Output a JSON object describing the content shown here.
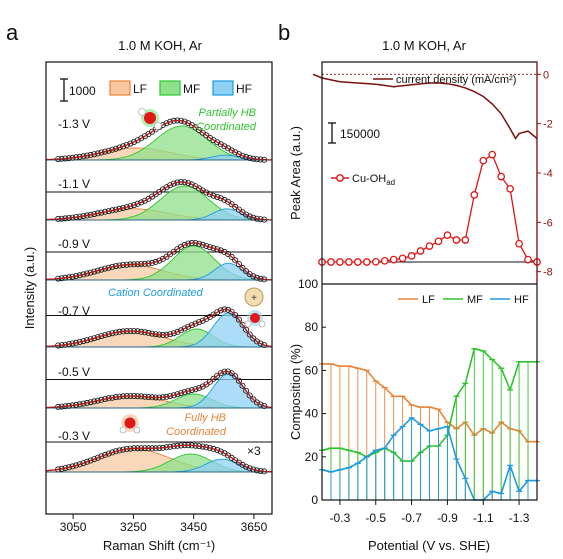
{
  "panel_letters": {
    "a": "a",
    "b": "b"
  },
  "colors": {
    "lf_fill": "#f7c9a3",
    "lf_line": "#e8843a",
    "mf_fill": "#8fe08a",
    "mf_line": "#2ec42e",
    "hf_fill": "#8fd0f5",
    "hf_line": "#1d9be0",
    "current": "#7a1010",
    "cuoh": "#e11414",
    "fit": "#b11a1a"
  },
  "chart_data": [
    {
      "type": "area",
      "panel": "a",
      "title": "1.0 M KOH, Ar",
      "xlabel": "Raman Shift (cm⁻¹)",
      "ylabel": "Intensity (a.u.)",
      "xlim": [
        2960,
        3710
      ],
      "xticks": [
        "3050",
        "3250",
        "3450",
        "3650"
      ],
      "xtick_values": [
        3050,
        3250,
        3450,
        3650
      ],
      "scale_bar_label": "1000",
      "legend": [
        "LF",
        "MF",
        "HF"
      ],
      "annotations": {
        "partial": [
          "Partially HB",
          "Coordinated"
        ],
        "cation": "Cation Coordinated",
        "fully": [
          "Fully HB",
          "Coordinated"
        ],
        "times3": "×3"
      },
      "series": [
        {
          "name": "-1.3 V",
          "lf": {
            "c": 3260,
            "h": 0.3,
            "w": 115
          },
          "mf": {
            "c": 3410,
            "h": 0.85,
            "w": 85
          },
          "hf": {
            "c": 3555,
            "h": 0.12,
            "w": 45
          }
        },
        {
          "name": "-1.1 V",
          "lf": {
            "c": 3250,
            "h": 0.28,
            "w": 115
          },
          "mf": {
            "c": 3420,
            "h": 0.85,
            "w": 80
          },
          "hf": {
            "c": 3560,
            "h": 0.28,
            "w": 45
          }
        },
        {
          "name": "-0.9 V",
          "lf": {
            "c": 3240,
            "h": 0.38,
            "w": 110
          },
          "mf": {
            "c": 3450,
            "h": 0.85,
            "w": 70
          },
          "hf": {
            "c": 3565,
            "h": 0.42,
            "w": 45
          }
        },
        {
          "name": "-0.7 V",
          "lf": {
            "c": 3240,
            "h": 0.4,
            "w": 110
          },
          "mf": {
            "c": 3460,
            "h": 0.45,
            "w": 55
          },
          "hf": {
            "c": 3565,
            "h": 0.85,
            "w": 50
          }
        },
        {
          "name": "-0.5 V",
          "lf": {
            "c": 3240,
            "h": 0.3,
            "w": 110
          },
          "mf": {
            "c": 3450,
            "h": 0.35,
            "w": 60
          },
          "hf": {
            "c": 3565,
            "h": 0.85,
            "w": 50
          }
        },
        {
          "name": "-0.3 V",
          "lf": {
            "c": 3250,
            "h": 0.58,
            "w": 120
          },
          "mf": {
            "c": 3440,
            "h": 0.45,
            "w": 70
          },
          "hf": {
            "c": 3545,
            "h": 0.32,
            "w": 55
          }
        }
      ]
    },
    {
      "type": "line",
      "panel": "b-top",
      "title": "1.0 M KOH, Ar",
      "ylabel": "Peak Area (a.u.)",
      "y2label": "Current Density (mA/cm²)",
      "y2lim": [
        -8.5,
        0.5
      ],
      "y2ticks": [
        "0",
        "-2",
        "-4",
        "-6",
        "-8"
      ],
      "y2tick_values": [
        0,
        -2,
        -4,
        -6,
        -8
      ],
      "scale_bar_label": "150000",
      "legend": [
        "current density (mA/cm²)",
        "Cu-OH"
      ],
      "legend_sub": "ad",
      "x": [
        -0.2,
        -0.25,
        -0.3,
        -0.35,
        -0.4,
        -0.45,
        -0.5,
        -0.55,
        -0.6,
        -0.65,
        -0.7,
        -0.75,
        -0.8,
        -0.85,
        -0.9,
        -0.95,
        -1.0,
        -1.05,
        -1.1,
        -1.15,
        -1.2,
        -1.25,
        -1.3,
        -1.35,
        -1.4
      ],
      "cu_oh": [
        0,
        0,
        0,
        0,
        0,
        0,
        0.002,
        0.01,
        0.02,
        0.03,
        0.05,
        0.09,
        0.13,
        0.17,
        0.22,
        0.18,
        0.18,
        0.55,
        0.83,
        0.88,
        0.7,
        0.6,
        0.15,
        0.02,
        0.0
      ],
      "current_x": [
        -0.15,
        -0.2,
        -0.3,
        -0.4,
        -0.5,
        -0.6,
        -0.7,
        -0.8,
        -0.85,
        -0.9,
        -0.95,
        -1.0,
        -1.05,
        -1.1,
        -1.15,
        -1.2,
        -1.25,
        -1.28,
        -1.3,
        -1.35,
        -1.4
      ],
      "current_y": [
        0.0,
        -0.15,
        -0.3,
        -0.35,
        -0.4,
        -0.5,
        -0.42,
        -0.35,
        -0.35,
        -0.38,
        -0.45,
        -0.55,
        -0.7,
        -0.9,
        -1.2,
        -1.6,
        -2.2,
        -2.6,
        -2.4,
        -2.3,
        -2.6
      ]
    },
    {
      "type": "line",
      "panel": "b-bottom",
      "xlabel": "Potential (V vs. SHE)",
      "ylabel": "Composition (%)",
      "xlim": [
        -0.2,
        -1.4
      ],
      "ylim": [
        0,
        100
      ],
      "xticks": [
        "-0.3",
        "-0.5",
        "-0.7",
        "-0.9",
        "-1.1",
        "-1.3"
      ],
      "xtick_values": [
        -0.3,
        -0.5,
        -0.7,
        -0.9,
        -1.1,
        -1.3
      ],
      "yticks": [
        "0",
        "20",
        "40",
        "60",
        "80",
        "100"
      ],
      "ytick_values": [
        0,
        20,
        40,
        60,
        80,
        100
      ],
      "x": [
        -0.2,
        -0.25,
        -0.3,
        -0.35,
        -0.4,
        -0.45,
        -0.5,
        -0.55,
        -0.6,
        -0.65,
        -0.7,
        -0.75,
        -0.8,
        -0.85,
        -0.9,
        -0.95,
        -1.0,
        -1.05,
        -1.1,
        -1.15,
        -1.2,
        -1.25,
        -1.3,
        -1.35,
        -1.4
      ],
      "series": [
        {
          "name": "LF",
          "values": [
            63,
            63,
            62,
            62,
            61,
            60,
            55,
            52,
            48,
            48,
            44,
            43,
            43,
            42,
            36,
            33,
            36,
            30,
            33,
            31,
            36,
            33,
            32,
            27,
            27
          ]
        },
        {
          "name": "MF",
          "values": [
            23,
            24,
            24,
            23,
            22,
            20,
            22,
            24,
            22,
            18,
            18,
            22,
            25,
            25,
            30,
            48,
            54,
            70,
            69,
            65,
            61,
            51,
            64,
            64,
            64
          ]
        },
        {
          "name": "HF",
          "values": [
            14,
            13,
            14,
            15,
            17,
            20,
            23,
            24,
            30,
            34,
            38,
            35,
            32,
            33,
            34,
            19,
            10,
            0,
            0,
            4,
            3,
            16,
            4,
            9,
            9
          ]
        }
      ]
    }
  ]
}
